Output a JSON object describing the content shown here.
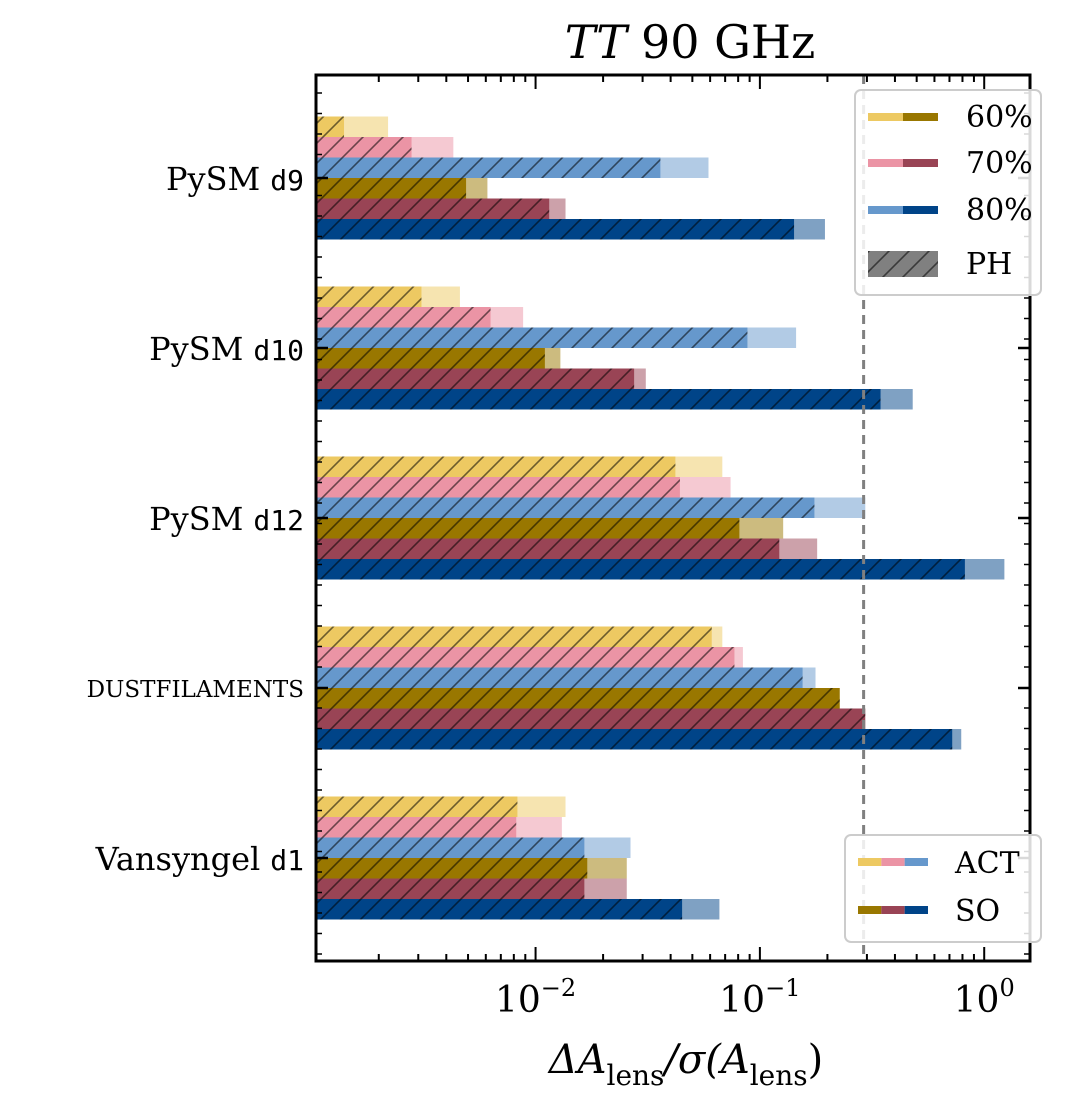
{
  "chart_data": {
    "type": "bar",
    "orientation": "horizontal",
    "title_italic": "TT",
    "title_rest": "90 GHz",
    "xlabel": "ΔA_lens/σ(A_lens)",
    "xlabel_parts": {
      "delta": "ΔA",
      "sub1": "lens",
      "mid": "/σ(A",
      "sub2": "lens",
      "end": ")"
    },
    "xscale": "log",
    "xlim": [
      0.00105,
      1.6
    ],
    "xticks": [
      {
        "value": 0.01,
        "base": "10",
        "exp": "−2"
      },
      {
        "value": 0.1,
        "base": "10",
        "exp": "−1"
      },
      {
        "value": 1,
        "base": "10",
        "exp": "0"
      }
    ],
    "reference_line": {
      "x": 0.29,
      "style": "dashed",
      "color": "#808080"
    },
    "categories": [
      {
        "name": "PySM",
        "code": "d9"
      },
      {
        "name": "PySM",
        "code": "d10"
      },
      {
        "name": "PySM",
        "code": "d12"
      },
      {
        "name": "DUSTFILAMENTS",
        "code": ""
      },
      {
        "name": "Vansyngel",
        "code": "d1"
      }
    ],
    "series": [
      {
        "name": "ACT 60%",
        "experiment": "ACT",
        "fsky": "60%",
        "color": "#EDC962",
        "ph_values": [
          0.0014,
          0.0031,
          0.042,
          0.061,
          0.0083
        ],
        "total_values": [
          0.0022,
          0.0046,
          0.068,
          0.068,
          0.0136
        ]
      },
      {
        "name": "ACT 70%",
        "experiment": "ACT",
        "fsky": "70%",
        "color": "#EB94A5",
        "ph_values": [
          0.0028,
          0.0063,
          0.044,
          0.077,
          0.0082
        ],
        "total_values": [
          0.0043,
          0.0088,
          0.074,
          0.084,
          0.0131
        ]
      },
      {
        "name": "ACT 80%",
        "experiment": "ACT",
        "fsky": "80%",
        "color": "#6698CC",
        "ph_values": [
          0.036,
          0.088,
          0.175,
          0.155,
          0.0165
        ],
        "total_values": [
          0.059,
          0.145,
          0.295,
          0.177,
          0.0265
        ]
      },
      {
        "name": "SO 60%",
        "experiment": "SO",
        "fsky": "60%",
        "color": "#997700",
        "ph_values": [
          0.0049,
          0.011,
          0.081,
          0.227,
          0.017
        ],
        "total_values": [
          0.0061,
          0.0129,
          0.127,
          0.227,
          0.0255
        ]
      },
      {
        "name": "SO 70%",
        "experiment": "SO",
        "fsky": "70%",
        "color": "#994455",
        "ph_values": [
          0.0115,
          0.0275,
          0.122,
          0.295,
          0.0165
        ],
        "total_values": [
          0.0136,
          0.031,
          0.18,
          0.295,
          0.0255
        ]
      },
      {
        "name": "SO 80%",
        "experiment": "SO",
        "fsky": "80%",
        "color": "#004488",
        "ph_values": [
          0.142,
          0.345,
          0.82,
          0.72,
          0.045
        ],
        "total_values": [
          0.195,
          0.48,
          1.23,
          0.79,
          0.066
        ]
      }
    ],
    "legend_fsky": {
      "placement": "top-right",
      "entries": [
        {
          "label": "60%",
          "colors": [
            "#EDC962",
            "#997700"
          ]
        },
        {
          "label": "70%",
          "colors": [
            "#EB94A5",
            "#994455"
          ]
        },
        {
          "label": "80%",
          "colors": [
            "#6698CC",
            "#004488"
          ]
        },
        {
          "label": "PH",
          "colors": [
            "#808080"
          ],
          "hatched": true
        }
      ]
    },
    "legend_experiment": {
      "placement": "bottom-right",
      "entries": [
        {
          "label": "ACT",
          "colors": [
            "#EDC962",
            "#EB94A5",
            "#6698CC"
          ]
        },
        {
          "label": "SO",
          "colors": [
            "#997700",
            "#994455",
            "#004488"
          ]
        }
      ]
    }
  }
}
